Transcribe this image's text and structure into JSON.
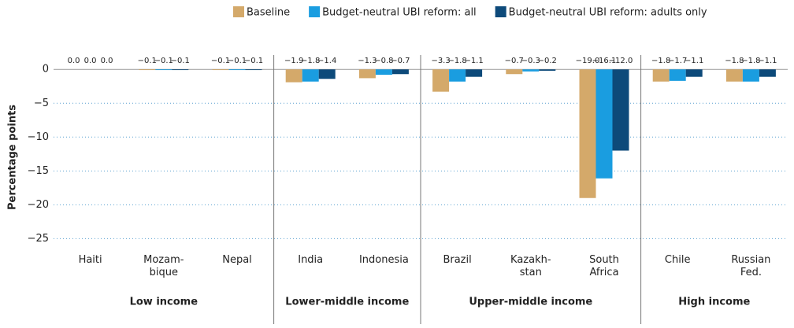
{
  "chart_data": {
    "type": "bar",
    "y_label": "Percentage points",
    "groups": [
      {
        "name": "Low income",
        "categories": [
          "Haiti",
          "Mozam-\nbique",
          "Nepal"
        ]
      },
      {
        "name": "Lower-middle income",
        "categories": [
          "India",
          "Indonesia"
        ]
      },
      {
        "name": "Upper-middle income",
        "categories": [
          "Brazil",
          "Kazakh-\nstan",
          "South\nAfrica"
        ]
      },
      {
        "name": "High income",
        "categories": [
          "Chile",
          "Russian\nFed."
        ]
      }
    ],
    "series": [
      {
        "name": "Baseline",
        "color": "#d4a96a",
        "values": [
          0,
          -0.1,
          -0.1,
          -1.9,
          -1.3,
          -3.3,
          -0.7,
          -19.0,
          -1.8,
          -1.8
        ],
        "value_labels": [
          "0.0",
          "−0.1",
          "−0.1",
          "−1.9",
          "−1.3",
          "−3.3",
          "−0.7",
          "−19.0",
          "−1.8",
          "−1.8"
        ]
      },
      {
        "name": "Budget-neutral UBI reform: all",
        "color": "#1a9de0",
        "values": [
          0,
          -0.1,
          -0.1,
          -1.8,
          -0.8,
          -1.8,
          -0.3,
          -16.1,
          -1.7,
          -1.8
        ],
        "value_labels": [
          "0.0",
          "−0.1",
          "−0.1",
          "−1.8",
          "−0.8",
          "−1.8",
          "−0.3",
          "−16.1",
          "−1.7",
          "−1.8"
        ]
      },
      {
        "name": "Budget-neutral UBI reform: adults only",
        "color": "#0d4a7a",
        "values": [
          0,
          -0.1,
          -0.1,
          -1.4,
          -0.7,
          -1.1,
          -0.2,
          -12.0,
          -1.1,
          -1.1
        ],
        "value_labels": [
          "0.0",
          "−0.1",
          "−0.1",
          "−1.4",
          "−0.7",
          "−1.1",
          "−0.2",
          "−12.0",
          "−1.1",
          "−1.1"
        ]
      }
    ],
    "ylim": [
      -26,
      2
    ],
    "yticks": [
      0,
      {
        "value": -5,
        "label": "−5"
      },
      {
        "value": -10,
        "label": "−10"
      },
      {
        "value": -15,
        "label": "−15"
      },
      {
        "value": -20,
        "label": "−20"
      },
      {
        "value": -25,
        "label": "−25"
      }
    ],
    "grid": true,
    "legend": "top-right"
  }
}
